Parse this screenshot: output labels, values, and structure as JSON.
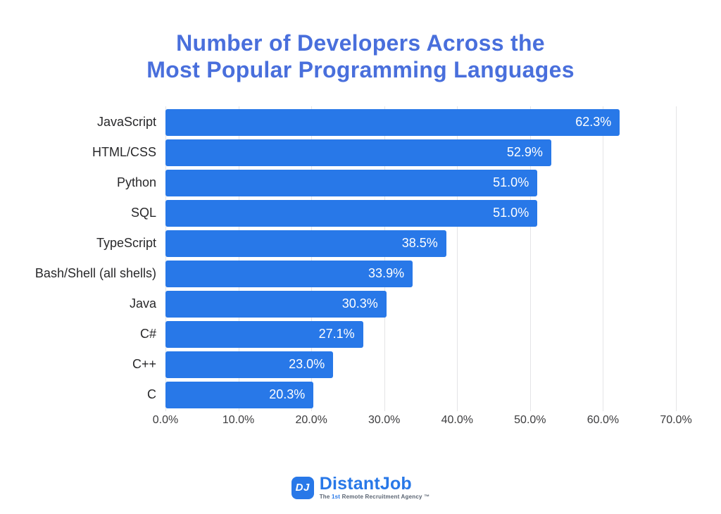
{
  "chart_data": {
    "type": "bar",
    "orientation": "horizontal",
    "title": "Number of Developers Across the Most Popular Programming Languages",
    "title_lines": [
      "Number of Developers Across the",
      "Most Popular Programming Languages"
    ],
    "categories": [
      "JavaScript",
      "HTML/CSS",
      "Python",
      "SQL",
      "TypeScript",
      "Bash/Shell (all shells)",
      "Java",
      "C#",
      "C++",
      "C"
    ],
    "values": [
      62.3,
      52.9,
      51.0,
      51.0,
      38.5,
      33.9,
      30.3,
      27.1,
      23.0,
      20.3
    ],
    "value_labels": [
      "62.3%",
      "52.9%",
      "51.0%",
      "51.0%",
      "38.5%",
      "33.9%",
      "30.3%",
      "27.1%",
      "23.0%",
      "20.3%"
    ],
    "xlabel": "",
    "ylabel": "",
    "xlim": [
      0,
      70
    ],
    "x_ticks": [
      0,
      10,
      20,
      30,
      40,
      50,
      60,
      70
    ],
    "x_tick_labels": [
      "0.0%",
      "10.0%",
      "20.0%",
      "30.0%",
      "40.0%",
      "50.0%",
      "60.0%",
      "70.0%"
    ],
    "grid": true,
    "legend": false,
    "colors": {
      "bar": "#2878e8",
      "title": "#496fdc",
      "grid": "#e4e4e6",
      "value_text": "#ffffff",
      "category_text": "#28282a",
      "tick_text": "#3c3c3e"
    }
  },
  "footer": {
    "monogram": "DJ",
    "brand": "DistantJob",
    "tagline": {
      "prefix": "The",
      "highlight": "1st",
      "rest": "Remote Recruitment Agency ™"
    }
  }
}
